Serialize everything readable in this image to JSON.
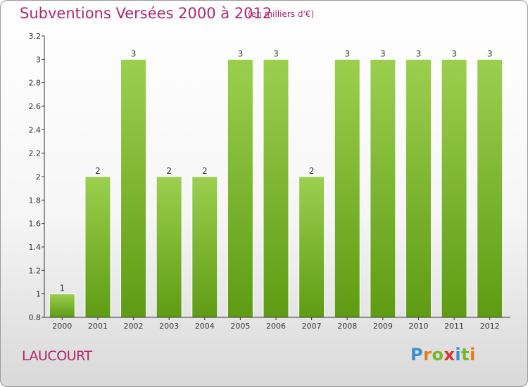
{
  "header": {
    "title": "Subventions Versées 2000 à 2012",
    "subtitle": "(en milliers d'€)"
  },
  "footer": {
    "commune": "LAUCOURT",
    "logo": {
      "letters": [
        "P",
        "r",
        "o",
        "x",
        "i",
        "t",
        "i"
      ],
      "colors": [
        "#3a8fd1",
        "#e87a1d",
        "#7cb42a",
        "#d9332f",
        "#3a8fd1",
        "#7cb42a",
        "#e87a1d"
      ]
    }
  },
  "chart_data": {
    "type": "bar",
    "categories": [
      "2000",
      "2001",
      "2002",
      "2003",
      "2004",
      "2005",
      "2006",
      "2007",
      "2008",
      "2009",
      "2010",
      "2011",
      "2012"
    ],
    "values": [
      1,
      2,
      3,
      2,
      2,
      3,
      3,
      2,
      3,
      3,
      3,
      3,
      3
    ],
    "data_labels": [
      "1",
      "2",
      "3",
      "2",
      "2",
      "3",
      "3",
      "2",
      "3",
      "3",
      "3",
      "3",
      "3"
    ],
    "ylim": [
      0.8,
      3.2
    ],
    "yticks": [
      "0.8",
      "1",
      "1.2",
      "1.4",
      "1.6",
      "1.8",
      "2",
      "2.2",
      "2.4",
      "2.6",
      "2.8",
      "3",
      "3.2"
    ],
    "bar_colors": {
      "top": "#9ccf4f",
      "bottom": "#5e9c13"
    },
    "grid": false,
    "legend": "none"
  }
}
